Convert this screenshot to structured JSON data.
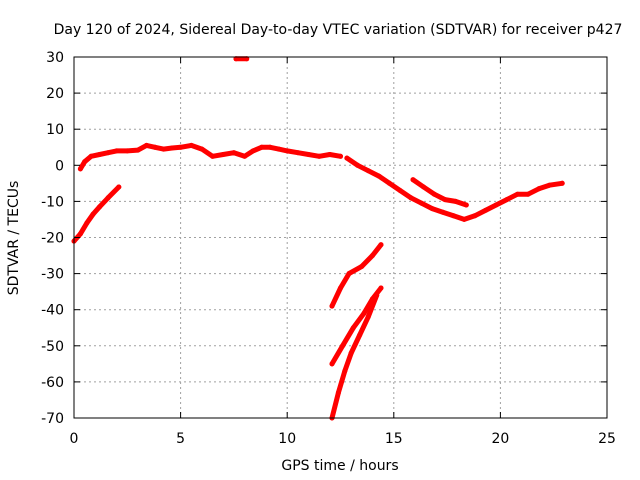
{
  "chart_data": {
    "type": "line",
    "title": "Day 120 of 2024, Sidereal Day-to-day VTEC variation (SDTVAR) for receiver p427",
    "xlabel": "GPS time / hours",
    "ylabel": "SDTVAR / TECUs",
    "xlim": [
      0,
      25
    ],
    "ylim": [
      -70,
      30
    ],
    "xticks": [
      0,
      5,
      10,
      15,
      20,
      25
    ],
    "yticks": [
      30,
      20,
      10,
      0,
      -10,
      -20,
      -30,
      -40,
      -50,
      -60,
      -70
    ],
    "grid": true,
    "color": "#ff0000",
    "series": [
      {
        "name": "main-arc",
        "points": [
          [
            0.3,
            -1
          ],
          [
            0.5,
            1
          ],
          [
            0.8,
            2.5
          ],
          [
            1.2,
            3
          ],
          [
            1.6,
            3.5
          ],
          [
            2,
            4
          ],
          [
            2.5,
            4
          ],
          [
            3,
            4.2
          ],
          [
            3.4,
            5.5
          ],
          [
            3.8,
            5
          ],
          [
            4.2,
            4.5
          ],
          [
            4.6,
            4.8
          ],
          [
            5,
            5
          ],
          [
            5.5,
            5.5
          ],
          [
            6,
            4.5
          ],
          [
            6.5,
            2.5
          ],
          [
            7,
            3
          ],
          [
            7.5,
            3.5
          ],
          [
            8,
            2.5
          ],
          [
            8.4,
            4
          ],
          [
            8.8,
            5
          ],
          [
            9.2,
            5
          ],
          [
            9.6,
            4.5
          ],
          [
            10,
            4
          ],
          [
            10.5,
            3.5
          ],
          [
            11,
            3
          ],
          [
            11.5,
            2.5
          ],
          [
            12,
            3
          ],
          [
            12.5,
            2.5
          ]
        ]
      },
      {
        "name": "low-start-arc",
        "points": [
          [
            0,
            -21
          ],
          [
            0.3,
            -19
          ],
          [
            0.6,
            -16
          ],
          [
            0.9,
            -13.5
          ],
          [
            1.2,
            -11.5
          ],
          [
            1.6,
            -9
          ],
          [
            2.1,
            -6
          ]
        ]
      },
      {
        "name": "top-segment",
        "points": [
          [
            7.6,
            29.5
          ],
          [
            8.1,
            29.5
          ]
        ]
      },
      {
        "name": "afternoon-arc",
        "points": [
          [
            12.8,
            2
          ],
          [
            13.3,
            0
          ],
          [
            13.8,
            -1.5
          ],
          [
            14.3,
            -3
          ],
          [
            14.8,
            -5
          ],
          [
            15.3,
            -7
          ],
          [
            15.8,
            -9
          ],
          [
            16.3,
            -10.5
          ],
          [
            16.8,
            -12
          ],
          [
            17.3,
            -13
          ],
          [
            17.8,
            -14
          ],
          [
            18.3,
            -15
          ],
          [
            18.8,
            -14
          ],
          [
            19.3,
            -12.5
          ],
          [
            19.8,
            -11
          ],
          [
            20.3,
            -9.5
          ],
          [
            20.8,
            -8
          ],
          [
            21.3,
            -8
          ],
          [
            21.8,
            -6.5
          ],
          [
            22.3,
            -5.5
          ],
          [
            22.9,
            -5
          ]
        ]
      },
      {
        "name": "upper-branch",
        "points": [
          [
            15.9,
            -4
          ],
          [
            16.4,
            -6
          ],
          [
            16.9,
            -8
          ],
          [
            17.4,
            -9.5
          ],
          [
            17.9,
            -10
          ],
          [
            18.4,
            -11
          ]
        ]
      },
      {
        "name": "drop-arc-1",
        "points": [
          [
            12.1,
            -39
          ],
          [
            12.5,
            -34
          ],
          [
            12.9,
            -30
          ],
          [
            13.5,
            -28
          ],
          [
            14,
            -25
          ],
          [
            14.4,
            -22
          ]
        ]
      },
      {
        "name": "drop-arc-2",
        "points": [
          [
            12.1,
            -55
          ],
          [
            12.6,
            -50
          ],
          [
            13.1,
            -45
          ],
          [
            13.6,
            -41
          ],
          [
            14,
            -37
          ],
          [
            14.4,
            -34
          ]
        ]
      },
      {
        "name": "drop-arc-3",
        "points": [
          [
            12.1,
            -70
          ],
          [
            12.4,
            -63
          ],
          [
            12.7,
            -57
          ],
          [
            13,
            -52
          ],
          [
            13.4,
            -47
          ],
          [
            13.8,
            -42
          ],
          [
            14.2,
            -36
          ]
        ]
      }
    ]
  }
}
